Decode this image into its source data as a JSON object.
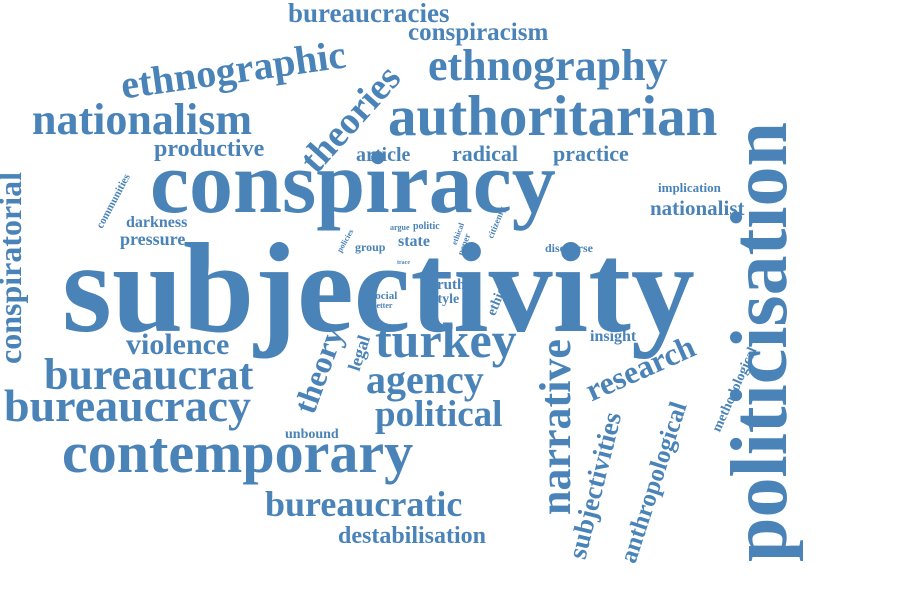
{
  "cloud": {
    "color": "#4a83b8",
    "words": [
      {
        "id": "subjectivity",
        "text": "subjectivity"
      },
      {
        "id": "conspiracy",
        "text": "conspiracy"
      },
      {
        "id": "politicisation",
        "text": "politicisation"
      },
      {
        "id": "contemporary",
        "text": "contemporary"
      },
      {
        "id": "authoritarian",
        "text": "authoritarian"
      },
      {
        "id": "nationalism",
        "text": "nationalism"
      },
      {
        "id": "ethnography",
        "text": "ethnography"
      },
      {
        "id": "ethnographic",
        "text": "ethnographic"
      },
      {
        "id": "bureaucracy",
        "text": "bureaucracy"
      },
      {
        "id": "bureaucrat",
        "text": "bureaucrat"
      },
      {
        "id": "bureaucratic",
        "text": "bureaucratic"
      },
      {
        "id": "bureaucracies",
        "text": "bureaucracies"
      },
      {
        "id": "conspiracism",
        "text": "conspiracism"
      },
      {
        "id": "theories",
        "text": "theories"
      },
      {
        "id": "conspiratorial",
        "text": "conspiratorial"
      },
      {
        "id": "turkey",
        "text": "turkey"
      },
      {
        "id": "narrative",
        "text": "narrative"
      },
      {
        "id": "agency",
        "text": "agency"
      },
      {
        "id": "political",
        "text": "political"
      },
      {
        "id": "violence",
        "text": "violence"
      },
      {
        "id": "theory",
        "text": "theory"
      },
      {
        "id": "research",
        "text": "research"
      },
      {
        "id": "subjectivities",
        "text": "subjectivities"
      },
      {
        "id": "anthropological",
        "text": "anthropological"
      },
      {
        "id": "destabilisation",
        "text": "destabilisation"
      },
      {
        "id": "productive",
        "text": "productive"
      },
      {
        "id": "article",
        "text": "article"
      },
      {
        "id": "radical",
        "text": "radical"
      },
      {
        "id": "practice",
        "text": "practice"
      },
      {
        "id": "nationalist",
        "text": "nationalist"
      },
      {
        "id": "implication",
        "text": "implication"
      },
      {
        "id": "communities",
        "text": "communities"
      },
      {
        "id": "darkness",
        "text": "darkness"
      },
      {
        "id": "pressure",
        "text": "pressure"
      },
      {
        "id": "policies",
        "text": "policies"
      },
      {
        "id": "group",
        "text": "group"
      },
      {
        "id": "argue",
        "text": "argue"
      },
      {
        "id": "politic",
        "text": "politic"
      },
      {
        "id": "state",
        "text": "state"
      },
      {
        "id": "ethical",
        "text": "ethical"
      },
      {
        "id": "paper",
        "text": "paper"
      },
      {
        "id": "citizenry",
        "text": "citizenry"
      },
      {
        "id": "discourse",
        "text": "discourse"
      },
      {
        "id": "trace",
        "text": "trace"
      },
      {
        "id": "social",
        "text": "social"
      },
      {
        "id": "better",
        "text": "better"
      },
      {
        "id": "truth",
        "text": "truth"
      },
      {
        "id": "style",
        "text": "style"
      },
      {
        "id": "ethic",
        "text": "ethic"
      },
      {
        "id": "legal",
        "text": "legal"
      },
      {
        "id": "insight",
        "text": "insight"
      },
      {
        "id": "methodological",
        "text": "methodological"
      },
      {
        "id": "unbound",
        "text": "unbound"
      }
    ]
  }
}
